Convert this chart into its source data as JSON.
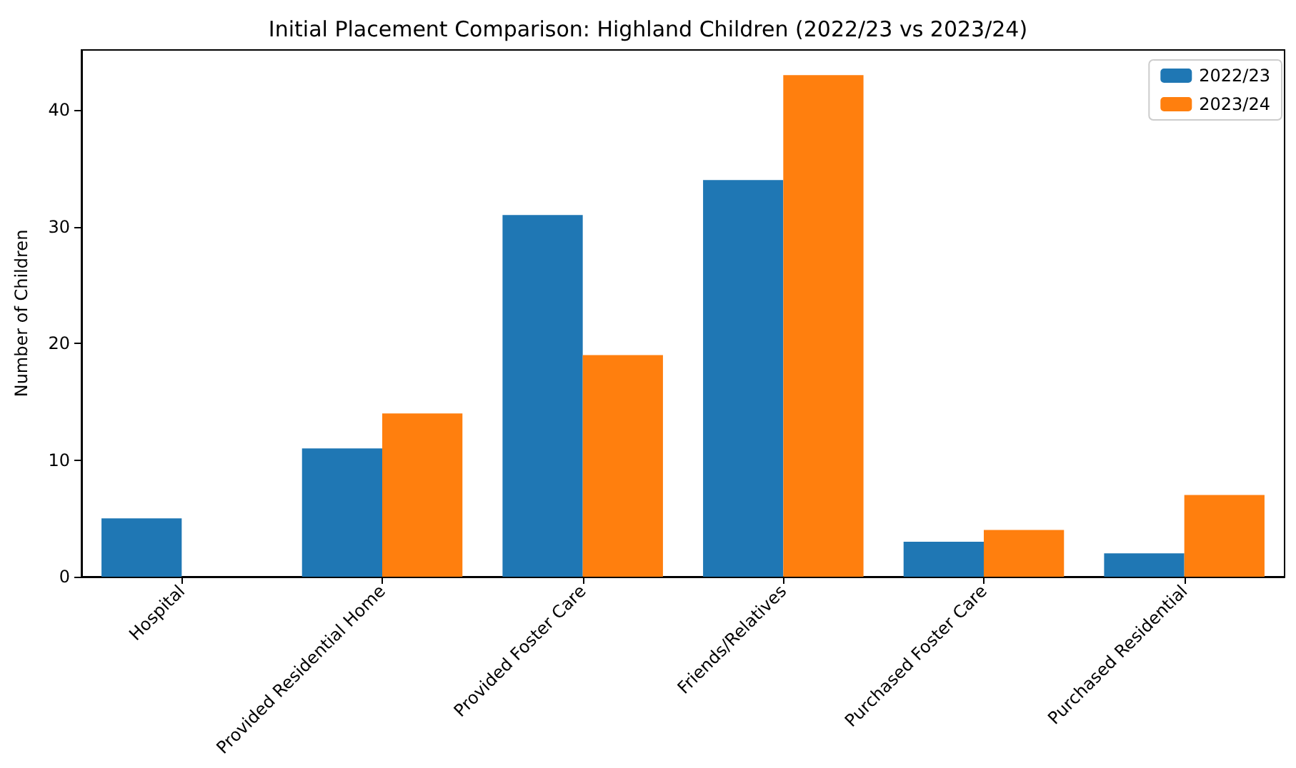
{
  "chart_data": {
    "type": "bar",
    "title": "Initial Placement Comparison: Highland Children (2022/23 vs 2023/24)",
    "ylabel": "Number of Children",
    "categories": [
      "Hospital",
      "Provided Residential Home",
      "Provided Foster Care",
      "Friends/Relatives",
      "Purchased Foster Care",
      "Purchased Residential"
    ],
    "series": [
      {
        "name": "2022/23",
        "color": "#1f77b4",
        "values": [
          5,
          11,
          31,
          34,
          3,
          2
        ]
      },
      {
        "name": "2023/24",
        "color": "#ff7f0e",
        "values": [
          0,
          14,
          19,
          43,
          4,
          7
        ]
      }
    ],
    "ylim": [
      0,
      45.15
    ],
    "yticks": [
      0,
      10,
      20,
      30,
      40
    ],
    "grid": false,
    "legend": "top right"
  }
}
